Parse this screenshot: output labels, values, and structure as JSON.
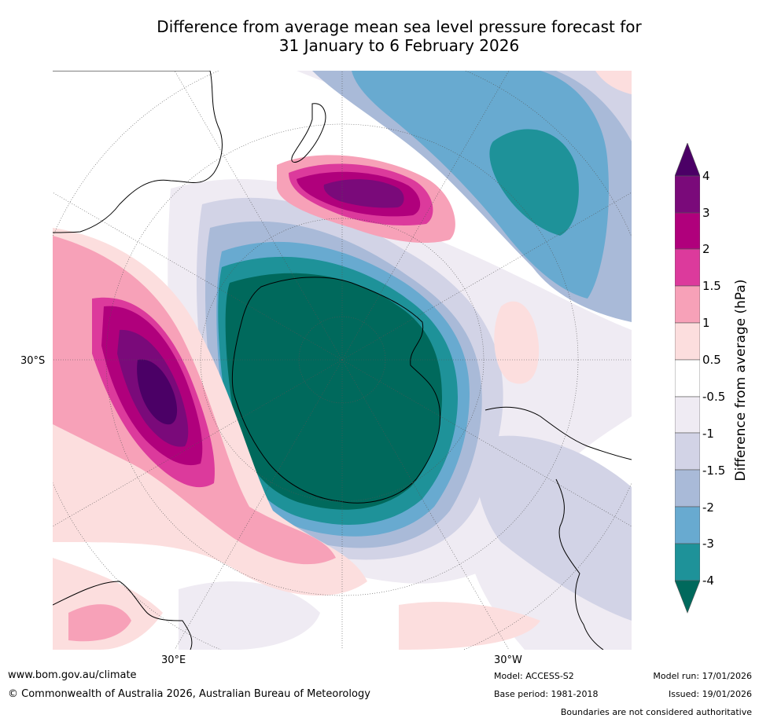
{
  "title": {
    "line1": "Difference from average mean sea level pressure forecast for",
    "line2": "31 January to 6 February 2026"
  },
  "map": {
    "lat_label": "30°S",
    "lon_labels": {
      "east": "30°E",
      "west": "30°W"
    }
  },
  "colorbar": {
    "title": "Difference from average (hPa)",
    "ticks": [
      "4",
      "3",
      "2",
      "1.5",
      "1",
      "0.5",
      "-0.5",
      "-1",
      "-1.5",
      "-2",
      "-3",
      "-4"
    ],
    "colors": {
      "gt4": "#4b0066",
      "c3_4": "#7a0a7a",
      "c2_3": "#b0007c",
      "c15_2": "#dc3a9c",
      "c1_15": "#f7a1b8",
      "c05_1": "#fcdede",
      "neutral": "#ffffff",
      "m1_m05": "#efebf3",
      "m15_m1": "#d2d3e6",
      "m2_m15": "#a9bad8",
      "m3_m2": "#68aad0",
      "m4_m3": "#1e9299",
      "lt_m4": "#00695c"
    }
  },
  "footer": {
    "website": "www.bom.gov.au/climate",
    "copyright": "© Commonwealth of Australia 2026, Australian Bureau of Meteorology",
    "model": "Model: ACCESS-S2",
    "base_period": "Base period: 1981-2018",
    "model_run": "Model run: 17/01/2026",
    "issued": "Issued: 19/01/2026",
    "disclaimer": "Boundaries are not considered authoritative"
  }
}
